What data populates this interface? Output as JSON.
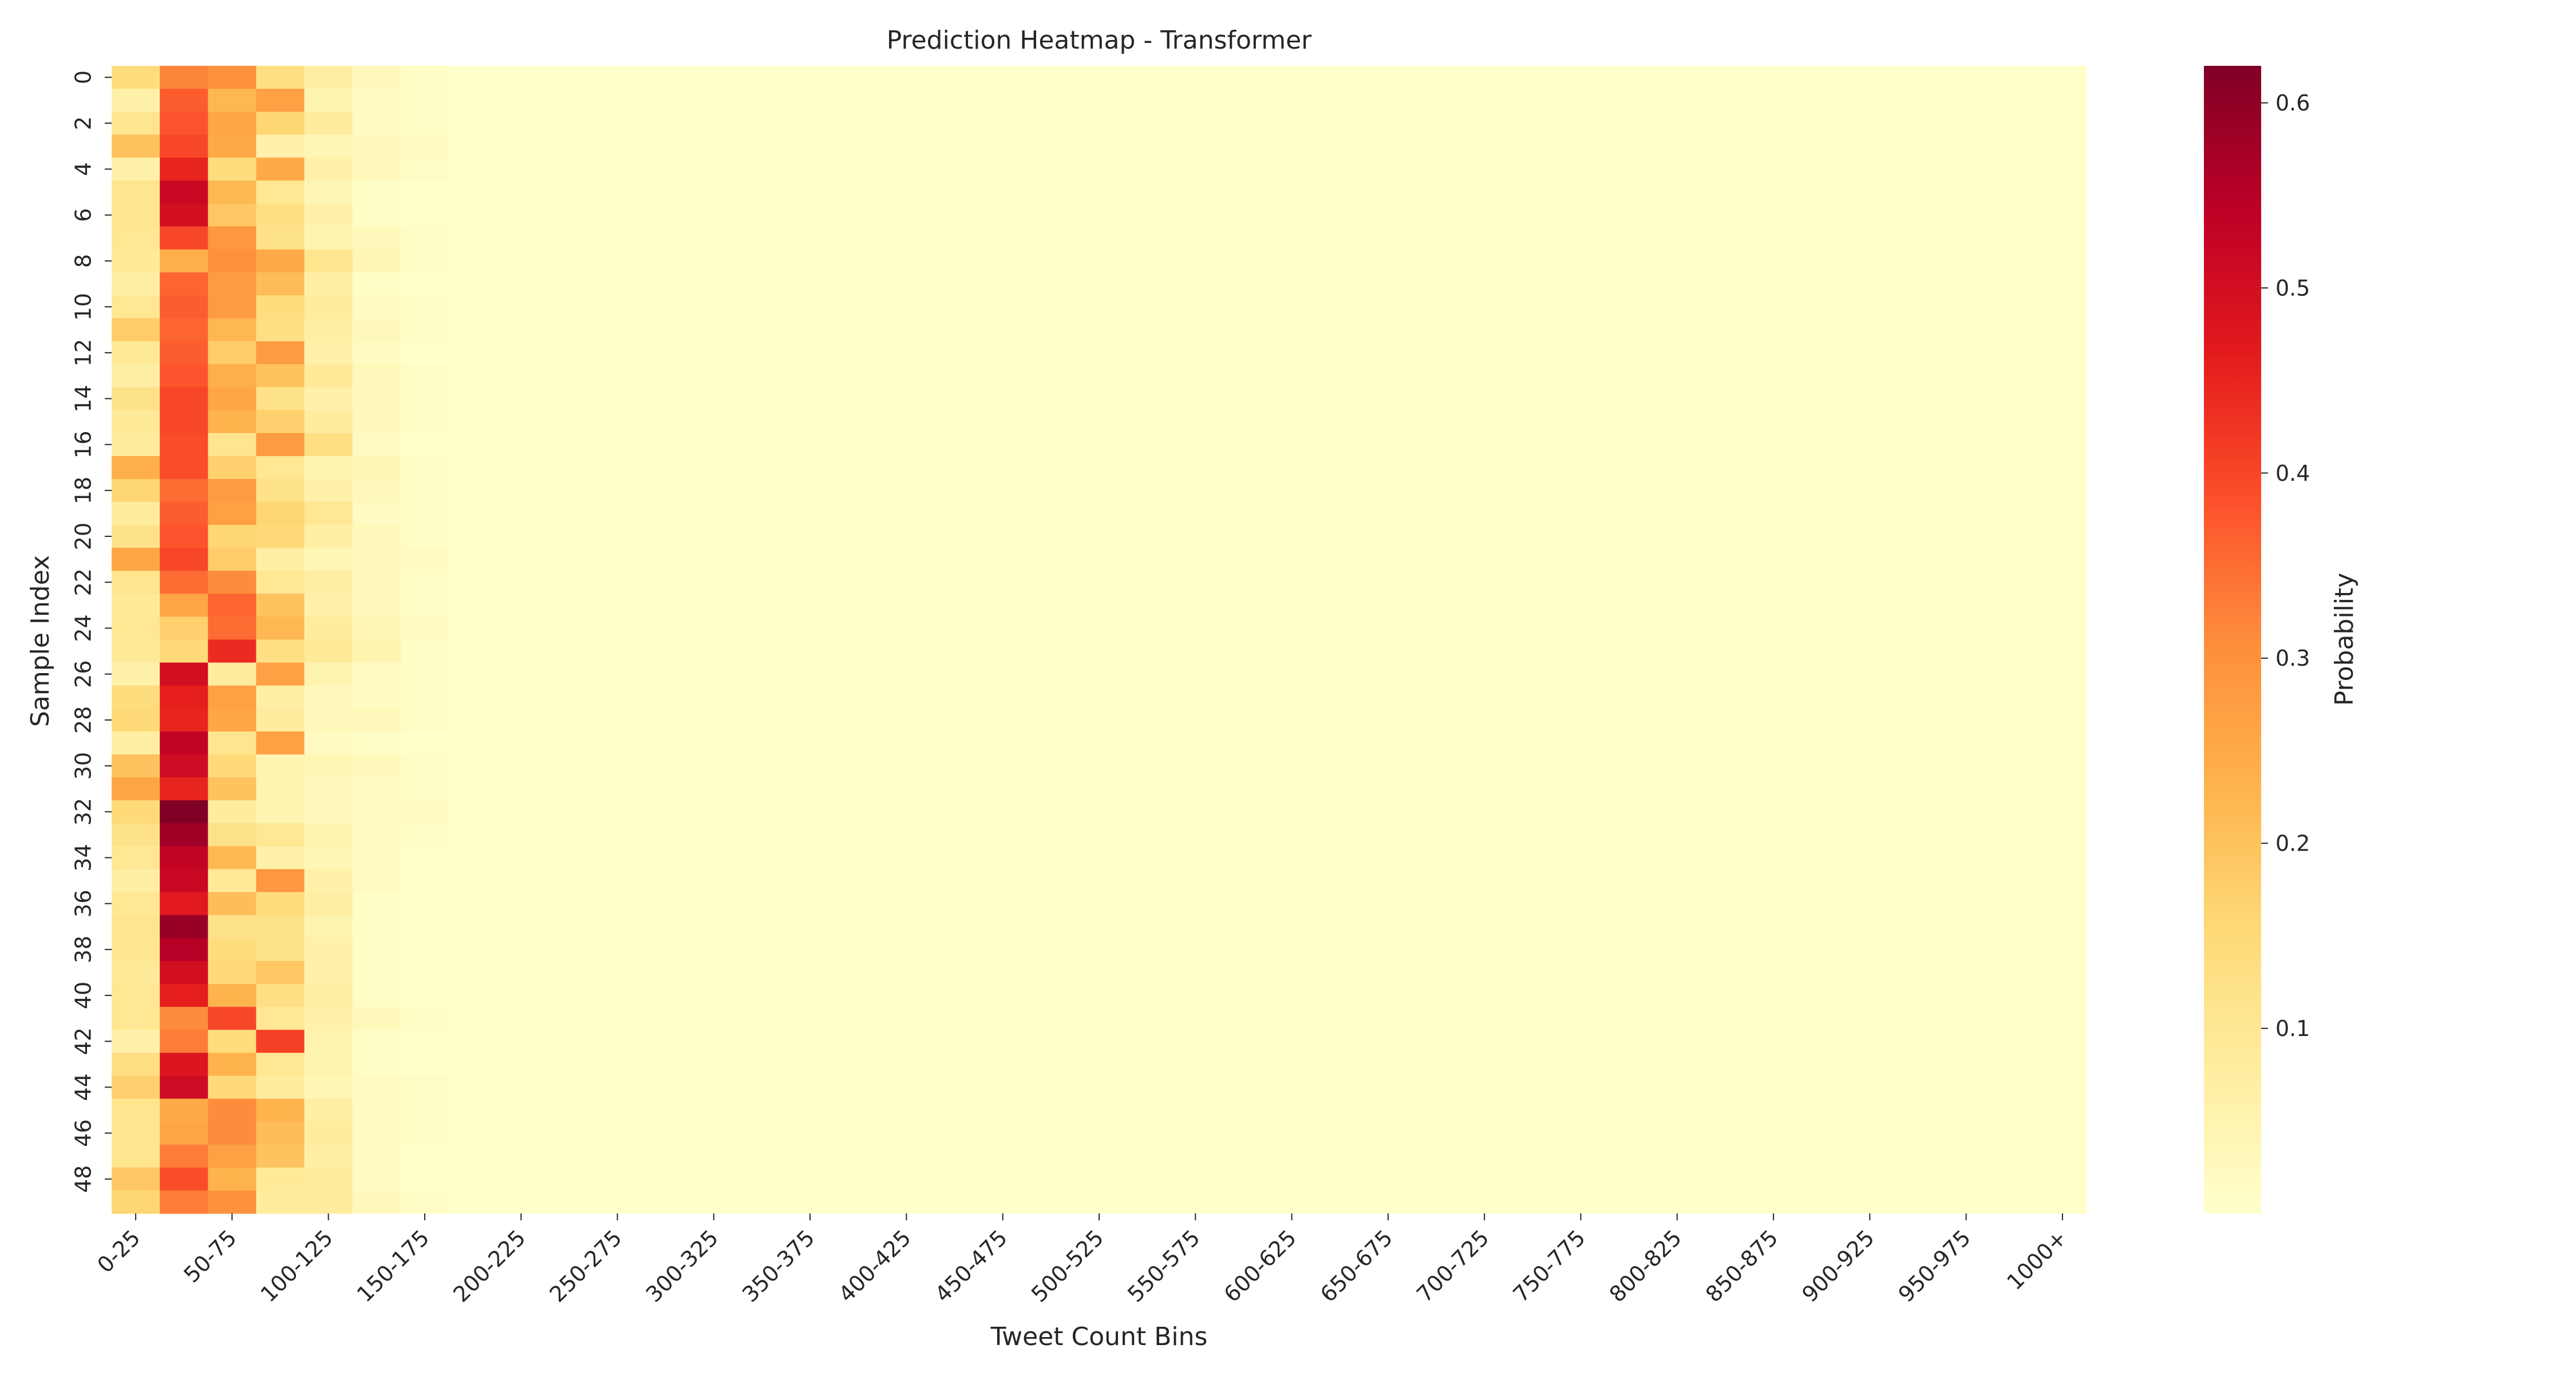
{
  "chart_data": {
    "type": "heatmap",
    "title": "Prediction Heatmap - Transformer",
    "xlabel": "Tweet Count Bins",
    "ylabel": "Sample Index",
    "colorbar_label": "Probability",
    "colormap": "YlOrRd",
    "colormap_stops": [
      "#ffffcc",
      "#ffeda0",
      "#fed976",
      "#feb24c",
      "#fd8d3c",
      "#fc4e2a",
      "#e31a1c",
      "#bd0026",
      "#800026"
    ],
    "vmin": 0.0,
    "vmax": 0.62,
    "colorbar_ticks": [
      0.1,
      0.2,
      0.3,
      0.4,
      0.5,
      0.6
    ],
    "colorbar_tick_labels": [
      "0.1",
      "0.2",
      "0.3",
      "0.4",
      "0.5",
      "0.6"
    ],
    "x_tick_labels": [
      "0-25",
      "50-75",
      "100-125",
      "150-175",
      "200-225",
      "250-275",
      "300-325",
      "350-375",
      "400-425",
      "450-475",
      "500-525",
      "550-575",
      "600-625",
      "650-675",
      "700-725",
      "750-775",
      "800-825",
      "850-875",
      "900-925",
      "950-975",
      "1000+"
    ],
    "x_tick_every": 2,
    "y_tick_labels": [
      "0",
      "2",
      "4",
      "6",
      "8",
      "10",
      "12",
      "14",
      "16",
      "18",
      "20",
      "22",
      "24",
      "26",
      "28",
      "30",
      "32",
      "34",
      "36",
      "38",
      "40",
      "42",
      "44",
      "46",
      "48"
    ],
    "y_tick_every": 2,
    "n_rows": 50,
    "n_cols": 41,
    "rows": [
      [
        0.14,
        0.32,
        0.3,
        0.13,
        0.07,
        0.03,
        0.01
      ],
      [
        0.06,
        0.37,
        0.22,
        0.27,
        0.05,
        0.02,
        0.01
      ],
      [
        0.11,
        0.38,
        0.26,
        0.16,
        0.08,
        0.02,
        0.01
      ],
      [
        0.2,
        0.4,
        0.25,
        0.06,
        0.04,
        0.03,
        0.02
      ],
      [
        0.06,
        0.45,
        0.14,
        0.25,
        0.06,
        0.03,
        0.01
      ],
      [
        0.11,
        0.52,
        0.22,
        0.1,
        0.04,
        0.01,
        0.0
      ],
      [
        0.11,
        0.5,
        0.19,
        0.13,
        0.06,
        0.01,
        0.0
      ],
      [
        0.1,
        0.4,
        0.29,
        0.12,
        0.05,
        0.03,
        0.01
      ],
      [
        0.09,
        0.24,
        0.3,
        0.25,
        0.11,
        0.04,
        0.01
      ],
      [
        0.07,
        0.36,
        0.28,
        0.21,
        0.07,
        0.01,
        0.0
      ],
      [
        0.1,
        0.37,
        0.28,
        0.14,
        0.08,
        0.02,
        0.01
      ],
      [
        0.18,
        0.36,
        0.22,
        0.13,
        0.07,
        0.03,
        0.01
      ],
      [
        0.09,
        0.37,
        0.18,
        0.28,
        0.06,
        0.02,
        0.0
      ],
      [
        0.07,
        0.38,
        0.24,
        0.2,
        0.09,
        0.03,
        0.01
      ],
      [
        0.12,
        0.4,
        0.26,
        0.12,
        0.06,
        0.03,
        0.01
      ],
      [
        0.09,
        0.4,
        0.23,
        0.17,
        0.08,
        0.03,
        0.01
      ],
      [
        0.08,
        0.39,
        0.11,
        0.28,
        0.13,
        0.02,
        0.0
      ],
      [
        0.24,
        0.39,
        0.17,
        0.1,
        0.05,
        0.04,
        0.01
      ],
      [
        0.16,
        0.35,
        0.28,
        0.12,
        0.06,
        0.03,
        0.01
      ],
      [
        0.08,
        0.37,
        0.27,
        0.16,
        0.1,
        0.02,
        0.01
      ],
      [
        0.12,
        0.38,
        0.16,
        0.15,
        0.07,
        0.03,
        0.01
      ],
      [
        0.26,
        0.4,
        0.18,
        0.07,
        0.04,
        0.03,
        0.02
      ],
      [
        0.11,
        0.35,
        0.31,
        0.1,
        0.07,
        0.03,
        0.01
      ],
      [
        0.09,
        0.26,
        0.36,
        0.2,
        0.06,
        0.03,
        0.01
      ],
      [
        0.1,
        0.17,
        0.35,
        0.22,
        0.08,
        0.04,
        0.02
      ],
      [
        0.09,
        0.15,
        0.44,
        0.13,
        0.09,
        0.05,
        0.01
      ],
      [
        0.06,
        0.5,
        0.08,
        0.27,
        0.05,
        0.02,
        0.01
      ],
      [
        0.14,
        0.46,
        0.27,
        0.07,
        0.03,
        0.02,
        0.01
      ],
      [
        0.15,
        0.45,
        0.26,
        0.08,
        0.03,
        0.03,
        0.01
      ],
      [
        0.07,
        0.53,
        0.11,
        0.27,
        0.02,
        0.01,
        0.0
      ],
      [
        0.2,
        0.51,
        0.15,
        0.05,
        0.04,
        0.03,
        0.01
      ],
      [
        0.26,
        0.45,
        0.2,
        0.05,
        0.03,
        0.02,
        0.01
      ],
      [
        0.15,
        0.62,
        0.08,
        0.05,
        0.03,
        0.02,
        0.02
      ],
      [
        0.12,
        0.58,
        0.12,
        0.1,
        0.05,
        0.02,
        0.01
      ],
      [
        0.1,
        0.53,
        0.22,
        0.06,
        0.04,
        0.02,
        0.0
      ],
      [
        0.07,
        0.52,
        0.09,
        0.29,
        0.06,
        0.02,
        0.0
      ],
      [
        0.1,
        0.47,
        0.21,
        0.14,
        0.07,
        0.01,
        0.0
      ],
      [
        0.11,
        0.59,
        0.12,
        0.12,
        0.05,
        0.01,
        0.0
      ],
      [
        0.11,
        0.55,
        0.14,
        0.12,
        0.06,
        0.01,
        0.0
      ],
      [
        0.09,
        0.5,
        0.15,
        0.19,
        0.06,
        0.01,
        0.0
      ],
      [
        0.1,
        0.46,
        0.23,
        0.13,
        0.07,
        0.01,
        0.0
      ],
      [
        0.1,
        0.31,
        0.4,
        0.1,
        0.06,
        0.03,
        0.01
      ],
      [
        0.06,
        0.33,
        0.14,
        0.41,
        0.05,
        0.01,
        0.0
      ],
      [
        0.13,
        0.48,
        0.23,
        0.1,
        0.05,
        0.01,
        0.0
      ],
      [
        0.17,
        0.51,
        0.15,
        0.08,
        0.04,
        0.02,
        0.01
      ],
      [
        0.11,
        0.25,
        0.31,
        0.23,
        0.07,
        0.02,
        0.01
      ],
      [
        0.11,
        0.26,
        0.31,
        0.21,
        0.08,
        0.02,
        0.01
      ],
      [
        0.11,
        0.33,
        0.27,
        0.2,
        0.07,
        0.02,
        0.0
      ],
      [
        0.19,
        0.39,
        0.23,
        0.09,
        0.08,
        0.02,
        0.0
      ],
      [
        0.16,
        0.33,
        0.3,
        0.08,
        0.08,
        0.03,
        0.01
      ]
    ],
    "background_value": 0.0
  }
}
